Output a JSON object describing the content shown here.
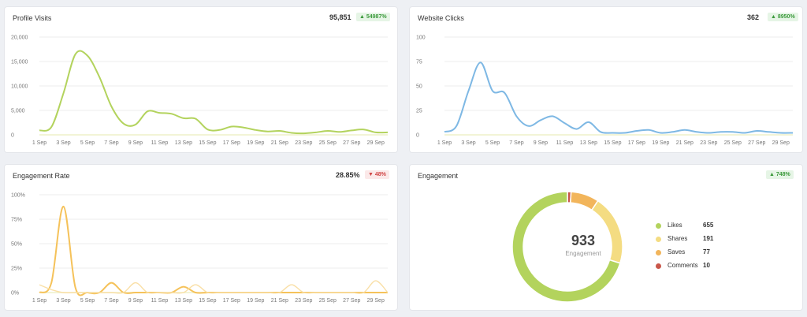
{
  "cards": {
    "profile_visits": {
      "title": "Profile Visits",
      "value": "95,851",
      "badge": "54987%"
    },
    "website_clicks": {
      "title": "Website Clicks",
      "value": "362",
      "badge": "8950%"
    },
    "engagement_rate": {
      "title": "Engagement Rate",
      "value": "28.85%",
      "badge": "48%"
    },
    "engagement": {
      "title": "Engagement",
      "badge": "748%",
      "total": "933",
      "total_label": "Engagement"
    }
  },
  "x_ticks": [
    "1 Sep",
    "3 Sep",
    "5 Sep",
    "7 Sep",
    "9 Sep",
    "11 Sep",
    "13 Sep",
    "15 Sep",
    "17 Sep",
    "19 Sep",
    "21 Sep",
    "23 Sep",
    "25 Sep",
    "27 Sep",
    "29 Sep"
  ],
  "colors": {
    "green": "#b3d35d",
    "blue": "#7eb8e4",
    "orange": "#f5c25a",
    "light_orange": "#f9dfa6",
    "yellow": "#f4dc82",
    "saves": "#f2b55b",
    "comments": "#c9574a",
    "baseline": "#eef0c8"
  },
  "chart_data": [
    {
      "type": "line",
      "title": "Profile Visits",
      "ylim": [
        0,
        20000
      ],
      "yticks": [
        0,
        5000,
        10000,
        15000,
        20000
      ],
      "ytick_labels": [
        "0",
        "5,000",
        "10,000",
        "15,000",
        "20,000"
      ],
      "x": [
        1,
        2,
        3,
        4,
        5,
        6,
        7,
        8,
        9,
        10,
        11,
        12,
        13,
        14,
        15,
        16,
        17,
        18,
        19,
        20,
        21,
        22,
        23,
        24,
        25,
        26,
        27,
        28,
        29,
        30
      ],
      "series": [
        {
          "values": [
            900,
            1600,
            8500,
            16500,
            16200,
            11800,
            5800,
            2300,
            2100,
            4800,
            4500,
            4300,
            3400,
            3300,
            1100,
            1000,
            1700,
            1500,
            1000,
            700,
            800,
            400,
            300,
            500,
            800,
            600,
            900,
            1100,
            500,
            500
          ]
        }
      ]
    },
    {
      "type": "line",
      "title": "Website Clicks",
      "ylim": [
        0,
        100
      ],
      "yticks": [
        0,
        25,
        50,
        75,
        100
      ],
      "ytick_labels": [
        "0",
        "25",
        "50",
        "75",
        "100"
      ],
      "x": [
        1,
        2,
        3,
        4,
        5,
        6,
        7,
        8,
        9,
        10,
        11,
        12,
        13,
        14,
        15,
        16,
        17,
        18,
        19,
        20,
        21,
        22,
        23,
        24,
        25,
        26,
        27,
        28,
        29,
        30
      ],
      "series": [
        {
          "values": [
            3,
            9,
            45,
            74,
            45,
            43,
            19,
            9,
            15,
            19,
            12,
            6,
            13,
            3,
            2,
            2,
            4,
            5,
            2,
            3,
            5,
            3,
            2,
            3,
            3,
            2,
            4,
            3,
            2,
            2
          ]
        }
      ]
    },
    {
      "type": "line",
      "title": "Engagement Rate",
      "ylim": [
        0,
        100
      ],
      "yticks": [
        0,
        25,
        50,
        75,
        100
      ],
      "ytick_labels": [
        "0%",
        "25%",
        "50%",
        "75%",
        "100%"
      ],
      "x": [
        1,
        2,
        3,
        4,
        5,
        6,
        7,
        8,
        9,
        10,
        11,
        12,
        13,
        14,
        15,
        16,
        17,
        18,
        19,
        20,
        21,
        22,
        23,
        24,
        25,
        26,
        27,
        28,
        29,
        30
      ],
      "series": [
        {
          "values": [
            0,
            10,
            88,
            5,
            0,
            0,
            10,
            0,
            0,
            0,
            0,
            0,
            6,
            0,
            0,
            0,
            0,
            0,
            0,
            0,
            0,
            0,
            0,
            0,
            0,
            0,
            0,
            0,
            0,
            0
          ]
        },
        {
          "values": [
            8,
            3,
            0,
            0,
            0,
            0,
            0,
            0,
            10,
            0,
            0,
            0,
            0,
            8,
            0,
            0,
            0,
            0,
            0,
            0,
            0,
            8,
            0,
            0,
            0,
            0,
            0,
            0,
            12,
            0
          ]
        }
      ]
    },
    {
      "type": "pie",
      "title": "Engagement",
      "categories": [
        "Likes",
        "Shares",
        "Saves",
        "Comments"
      ],
      "values": [
        655,
        191,
        77,
        10
      ],
      "total": 933
    }
  ]
}
